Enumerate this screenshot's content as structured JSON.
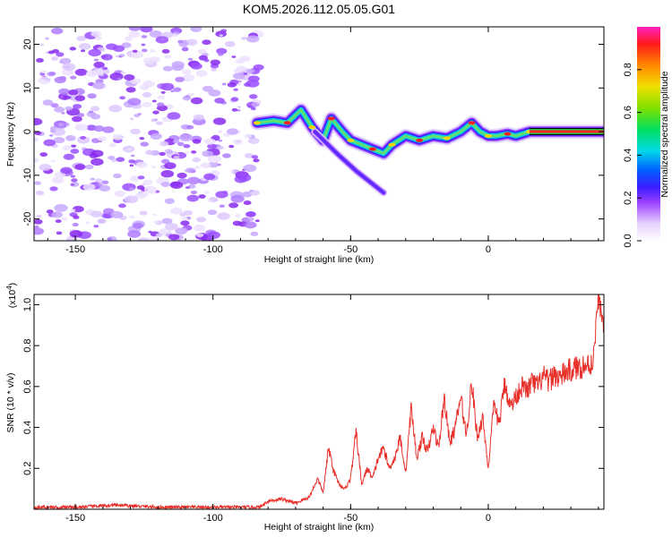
{
  "title": "KOM5.2026.112.05.05.G01",
  "chart_data": [
    {
      "type": "heatmap",
      "xlabel": "Height of straight line (km)",
      "ylabel": "Frequency (Hz)",
      "xlim": [
        -165,
        42
      ],
      "ylim": [
        -25,
        24
      ],
      "xticks": [
        -150,
        -100,
        -50,
        0
      ],
      "yticks": [
        -20,
        -10,
        0,
        10,
        20
      ],
      "colorbar": {
        "label": "Normalized spectral amplitude",
        "range": [
          0,
          1
        ],
        "ticks": [
          "0.0",
          "0.2",
          "0.4",
          "0.6",
          "0.8"
        ]
      },
      "noise_region": {
        "x": [
          -165,
          -83
        ],
        "y": [
          -25,
          24
        ]
      },
      "signal_track": [
        {
          "x": -84,
          "y": 2
        },
        {
          "x": -78,
          "y": 2.5
        },
        {
          "x": -73,
          "y": 2
        },
        {
          "x": -68,
          "y": 5
        },
        {
          "x": -64,
          "y": 1
        },
        {
          "x": -60,
          "y": -2
        },
        {
          "x": -57,
          "y": 3
        },
        {
          "x": -53,
          "y": 0
        },
        {
          "x": -50,
          "y": -2
        },
        {
          "x": -46,
          "y": -3
        },
        {
          "x": -42,
          "y": -4
        },
        {
          "x": -38,
          "y": -5
        },
        {
          "x": -35,
          "y": -3
        },
        {
          "x": -30,
          "y": -1
        },
        {
          "x": -25,
          "y": -2
        },
        {
          "x": -20,
          "y": -1
        },
        {
          "x": -15,
          "y": -1.5
        },
        {
          "x": -10,
          "y": 0
        },
        {
          "x": -6,
          "y": 2
        },
        {
          "x": -3,
          "y": 0
        },
        {
          "x": 0,
          "y": -1
        },
        {
          "x": 3,
          "y": -1
        },
        {
          "x": 7,
          "y": -0.5
        },
        {
          "x": 10,
          "y": -1
        },
        {
          "x": 15,
          "y": 0
        },
        {
          "x": 20,
          "y": 0
        },
        {
          "x": 30,
          "y": 0
        },
        {
          "x": 42,
          "y": 0
        }
      ],
      "signal_branch": [
        {
          "x": -63,
          "y": 0
        },
        {
          "x": -55,
          "y": -5
        },
        {
          "x": -48,
          "y": -9
        },
        {
          "x": -42,
          "y": -12
        },
        {
          "x": -38,
          "y": -14
        }
      ]
    },
    {
      "type": "line",
      "xlabel": "Height of straight line (km)",
      "ylabel": "SNR (10 * v/v)",
      "y_multiplier": "(x10",
      "y_multiplier_exp": "4",
      "y_multiplier_close": ")",
      "xlim": [
        -165,
        42
      ],
      "ylim": [
        0,
        1.05
      ],
      "xticks": [
        -150,
        -100,
        -50,
        0
      ],
      "yticks": [
        0.2,
        0.4,
        0.6,
        0.8,
        1.0
      ],
      "color": "#e8302a",
      "series": [
        {
          "x": [
            -165,
            -150,
            -135,
            -120,
            -100,
            -90,
            -83,
            -80,
            -75,
            -70,
            -65,
            -62,
            -60,
            -58,
            -56,
            -54,
            -52,
            -50,
            -48,
            -46,
            -44,
            -42,
            -40,
            -38,
            -36,
            -34,
            -32,
            -30,
            -28,
            -26,
            -24,
            -22,
            -20,
            -18,
            -16,
            -14,
            -12,
            -10,
            -8,
            -6,
            -4,
            -2,
            0,
            2,
            4,
            6,
            8,
            10,
            12,
            14,
            16,
            18,
            20,
            22,
            24,
            26,
            28,
            30,
            32,
            34,
            36,
            38,
            40,
            42
          ],
          "y": [
            0.01,
            0.01,
            0.02,
            0.01,
            0.01,
            0.01,
            0.01,
            0.04,
            0.05,
            0.03,
            0.06,
            0.15,
            0.08,
            0.3,
            0.18,
            0.12,
            0.1,
            0.15,
            0.38,
            0.12,
            0.2,
            0.15,
            0.25,
            0.3,
            0.2,
            0.25,
            0.35,
            0.18,
            0.5,
            0.25,
            0.35,
            0.28,
            0.4,
            0.3,
            0.55,
            0.32,
            0.4,
            0.55,
            0.36,
            0.62,
            0.35,
            0.45,
            0.2,
            0.5,
            0.42,
            0.62,
            0.5,
            0.55,
            0.6,
            0.58,
            0.62,
            0.6,
            0.65,
            0.62,
            0.66,
            0.64,
            0.67,
            0.68,
            0.69,
            0.7,
            0.7,
            0.72,
            1.03,
            0.9
          ]
        }
      ]
    }
  ]
}
